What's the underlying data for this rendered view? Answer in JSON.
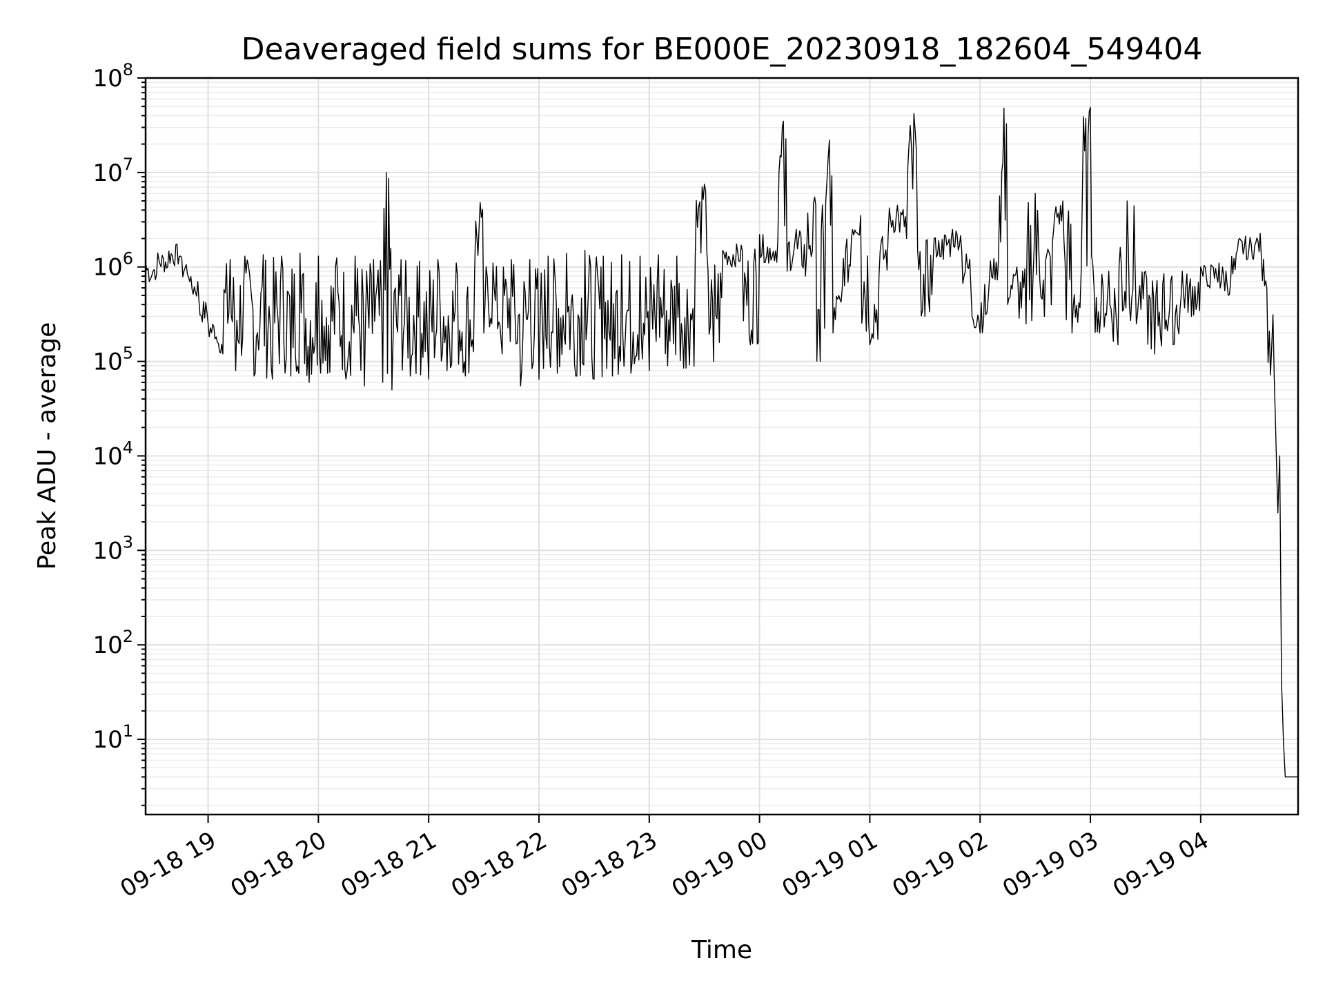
{
  "chart_data": {
    "type": "line",
    "title": "Deaveraged field sums for BE000E_20230918_182604_549404",
    "xlabel": "Time",
    "ylabel": "Peak ADU - average",
    "yscale": "log",
    "ylim": [
      1.6,
      100000000
    ],
    "xlim": [
      "09-18 18:26",
      "09-19 04:53"
    ],
    "grid": true,
    "x_ticks": [
      "09-18 19",
      "09-18 20",
      "09-18 21",
      "09-18 22",
      "09-18 23",
      "09-19 00",
      "09-19 01",
      "09-19 02",
      "09-19 03",
      "09-19 04"
    ],
    "y_ticks": [
      {
        "base": "10",
        "exp": "1",
        "value": 10
      },
      {
        "base": "10",
        "exp": "2",
        "value": 100
      },
      {
        "base": "10",
        "exp": "3",
        "value": 1000
      },
      {
        "base": "10",
        "exp": "4",
        "value": 10000
      },
      {
        "base": "10",
        "exp": "5",
        "value": 100000
      },
      {
        "base": "10",
        "exp": "6",
        "value": 1000000
      },
      {
        "base": "10",
        "exp": "7",
        "value": 10000000
      },
      {
        "base": "10",
        "exp": "8",
        "value": 100000000
      }
    ],
    "series": [
      {
        "points": [
          [
            "09-18 18:26",
            1100000
          ],
          [
            "09-18 18:28",
            700000
          ],
          [
            "09-18 18:32",
            850000
          ],
          [
            "09-18 18:38",
            1000000
          ],
          [
            "09-18 18:45",
            1300000
          ],
          [
            "09-18 18:50",
            700000
          ],
          [
            "09-18 18:55",
            450000
          ],
          [
            "09-18 19:00",
            250000
          ],
          [
            "09-18 19:05",
            160000
          ],
          [
            "09-18 19:08",
            120000
          ],
          [
            "09-18 19:12",
            1200000
          ],
          [
            "09-18 19:15",
            80000
          ],
          [
            "09-18 19:20",
            1300000
          ],
          [
            "09-18 19:25",
            70000
          ],
          [
            "09-18 19:30",
            1350000
          ],
          [
            "09-18 19:35",
            65000
          ],
          [
            "09-18 19:40",
            1300000
          ],
          [
            "09-18 19:45",
            70000
          ],
          [
            "09-18 19:50",
            1400000
          ],
          [
            "09-18 19:55",
            60000
          ],
          [
            "09-18 20:00",
            1300000
          ],
          [
            "09-18 20:05",
            75000
          ],
          [
            "09-18 20:10",
            1250000
          ],
          [
            "09-18 20:15",
            65000
          ],
          [
            "09-18 20:20",
            1300000
          ],
          [
            "09-18 20:25",
            55000
          ],
          [
            "09-18 20:30",
            1200000
          ],
          [
            "09-18 20:35",
            60000
          ],
          [
            "09-18 20:37",
            10000000
          ],
          [
            "09-18 20:40",
            50000
          ],
          [
            "09-18 20:45",
            1200000
          ],
          [
            "09-18 20:50",
            70000
          ],
          [
            "09-18 20:55",
            1150000
          ],
          [
            "09-18 21:00",
            65000
          ],
          [
            "09-18 21:05",
            1200000
          ],
          [
            "09-18 21:10",
            80000
          ],
          [
            "09-18 21:15",
            1100000
          ],
          [
            "09-18 21:20",
            70000
          ],
          [
            "09-18 21:25",
            900000
          ],
          [
            "09-18 21:28",
            4800000
          ],
          [
            "09-18 21:30",
            200000
          ],
          [
            "09-18 21:35",
            1100000
          ],
          [
            "09-18 21:40",
            120000
          ],
          [
            "09-18 21:45",
            1200000
          ],
          [
            "09-18 21:50",
            55000
          ],
          [
            "09-18 21:55",
            1200000
          ],
          [
            "09-18 22:00",
            65000
          ],
          [
            "09-18 22:05",
            1300000
          ],
          [
            "09-18 22:10",
            75000
          ],
          [
            "09-18 22:15",
            1400000
          ],
          [
            "09-18 22:20",
            70000
          ],
          [
            "09-18 22:25",
            1500000
          ],
          [
            "09-18 22:30",
            65000
          ],
          [
            "09-18 22:35",
            1300000
          ],
          [
            "09-18 22:40",
            70000
          ],
          [
            "09-18 22:45",
            1350000
          ],
          [
            "09-18 22:50",
            75000
          ],
          [
            "09-18 22:55",
            1300000
          ],
          [
            "09-18 23:00",
            80000
          ],
          [
            "09-18 23:05",
            1350000
          ],
          [
            "09-18 23:10",
            90000
          ],
          [
            "09-18 23:15",
            1300000
          ],
          [
            "09-18 23:20",
            85000
          ],
          [
            "09-18 23:25",
            1200000
          ],
          [
            "09-18 23:30",
            7500000
          ],
          [
            "09-18 23:32",
            900000
          ],
          [
            "09-18 23:35",
            100000
          ],
          [
            "09-18 23:40",
            1500000
          ],
          [
            "09-18 23:45",
            1000000
          ],
          [
            "09-18 23:50",
            1700000
          ],
          [
            "09-18 23:55",
            150000
          ],
          [
            "09-19 00:00",
            2200000
          ],
          [
            "09-19 00:05",
            1100000
          ],
          [
            "09-19 00:10",
            2000000
          ],
          [
            "09-19 00:13",
            35000000
          ],
          [
            "09-19 00:15",
            900000
          ],
          [
            "09-19 00:20",
            2500000
          ],
          [
            "09-19 00:25",
            800000
          ],
          [
            "09-19 00:30",
            5500000
          ],
          [
            "09-19 00:33",
            100000
          ],
          [
            "09-19 00:36",
            4800000
          ],
          [
            "09-19 00:38",
            22000000
          ],
          [
            "09-19 00:40",
            200000
          ],
          [
            "09-19 00:45",
            600000
          ],
          [
            "09-19 00:50",
            2000000
          ],
          [
            "09-19 00:55",
            3500000
          ],
          [
            "09-19 01:00",
            150000
          ],
          [
            "09-19 01:05",
            800000
          ],
          [
            "09-19 01:10",
            2200000
          ],
          [
            "09-19 01:15",
            4500000
          ],
          [
            "09-19 01:20",
            2000000
          ],
          [
            "09-19 01:24",
            42000000
          ],
          [
            "09-19 01:26",
            1500000
          ],
          [
            "09-19 01:30",
            300000
          ],
          [
            "09-19 01:35",
            2000000
          ],
          [
            "09-19 01:40",
            1200000
          ],
          [
            "09-19 01:45",
            2500000
          ],
          [
            "09-19 01:50",
            1500000
          ],
          [
            "09-19 01:55",
            600000
          ],
          [
            "09-19 02:00",
            200000
          ],
          [
            "09-19 02:05",
            700000
          ],
          [
            "09-19 02:10",
            1200000
          ],
          [
            "09-19 02:13",
            48000000
          ],
          [
            "09-19 02:15",
            400000
          ],
          [
            "09-19 02:20",
            1000000
          ],
          [
            "09-19 02:25",
            250000
          ],
          [
            "09-19 02:30",
            6000000
          ],
          [
            "09-19 02:35",
            300000
          ],
          [
            "09-19 02:40",
            2500000
          ],
          [
            "09-19 02:45",
            5000000
          ],
          [
            "09-19 02:50",
            200000
          ],
          [
            "09-19 02:55",
            900000
          ],
          [
            "09-19 03:00",
            49000000
          ],
          [
            "09-19 03:02",
            600000
          ],
          [
            "09-19 03:05",
            200000
          ],
          [
            "09-19 03:10",
            900000
          ],
          [
            "09-19 03:15",
            150000
          ],
          [
            "09-19 03:20",
            5000000
          ],
          [
            "09-19 03:25",
            250000
          ],
          [
            "09-19 03:30",
            900000
          ],
          [
            "09-19 03:35",
            120000
          ],
          [
            "09-19 03:40",
            850000
          ],
          [
            "09-19 03:45",
            150000
          ],
          [
            "09-19 03:50",
            900000
          ],
          [
            "09-19 03:55",
            300000
          ],
          [
            "09-19 04:00",
            1000000
          ],
          [
            "09-19 04:05",
            600000
          ],
          [
            "09-19 04:10",
            1100000
          ],
          [
            "09-19 04:15",
            500000
          ],
          [
            "09-19 04:20",
            1500000
          ],
          [
            "09-19 04:25",
            1200000
          ],
          [
            "09-19 04:30",
            1800000
          ],
          [
            "09-19 04:33",
            1300000
          ],
          [
            "09-19 04:36",
            600000
          ],
          [
            "09-19 04:40",
            70000
          ],
          [
            "09-19 04:42",
            2500
          ],
          [
            "09-19 04:43",
            10000
          ],
          [
            "09-19 04:44",
            40
          ],
          [
            "09-19 04:45",
            10
          ],
          [
            "09-19 04:46",
            4
          ],
          [
            "09-19 04:53",
            4
          ]
        ]
      }
    ]
  }
}
